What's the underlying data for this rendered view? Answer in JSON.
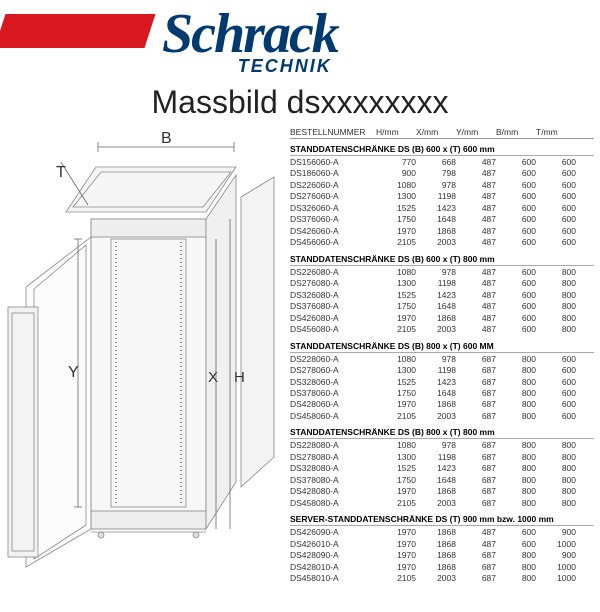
{
  "logo": {
    "main": "Schrack",
    "sub": "TECHNIK"
  },
  "title": "Massbild dsxxxxxxxx",
  "diagram_labels": {
    "B": "B",
    "T": "T",
    "Y": "Y",
    "X": "X",
    "H": "H"
  },
  "columns": [
    "BESTELLNUMMER",
    "H/mm",
    "X/mm",
    "Y/mm",
    "B/mm",
    "T/mm"
  ],
  "sections": [
    {
      "title": "STANDDATENSCHRÄNKE DS (B) 600 x (T) 600 mm",
      "rows": [
        [
          "DS156060-A",
          "770",
          "668",
          "487",
          "600",
          "600"
        ],
        [
          "DS186060-A",
          "900",
          "798",
          "487",
          "600",
          "600"
        ],
        [
          "DS226060-A",
          "1080",
          "978",
          "487",
          "600",
          "600"
        ],
        [
          "DS276060-A",
          "1300",
          "1198",
          "487",
          "600",
          "600"
        ],
        [
          "DS326060-A",
          "1525",
          "1423",
          "487",
          "600",
          "600"
        ],
        [
          "DS376060-A",
          "1750",
          "1648",
          "487",
          "600",
          "600"
        ],
        [
          "DS426060-A",
          "1970",
          "1868",
          "487",
          "600",
          "600"
        ],
        [
          "DS456060-A",
          "2105",
          "2003",
          "487",
          "600",
          "600"
        ]
      ]
    },
    {
      "title": "STANDDATENSCHRÄNKE DS (B) 600 x (T) 800 mm",
      "rows": [
        [
          "DS226080-A",
          "1080",
          "978",
          "487",
          "600",
          "800"
        ],
        [
          "DS276080-A",
          "1300",
          "1198",
          "487",
          "600",
          "800"
        ],
        [
          "DS326080-A",
          "1525",
          "1423",
          "487",
          "600",
          "800"
        ],
        [
          "DS376080-A",
          "1750",
          "1648",
          "487",
          "600",
          "800"
        ],
        [
          "DS426080-A",
          "1970",
          "1868",
          "487",
          "600",
          "800"
        ],
        [
          "DS456080-A",
          "2105",
          "2003",
          "487",
          "600",
          "800"
        ]
      ]
    },
    {
      "title": "STANDDATENSCHRÄNKE DS (B) 800 x (T) 600 MM",
      "rows": [
        [
          "DS228060-A",
          "1080",
          "978",
          "687",
          "800",
          "600"
        ],
        [
          "DS278060-A",
          "1300",
          "1198",
          "687",
          "800",
          "600"
        ],
        [
          "DS328060-A",
          "1525",
          "1423",
          "687",
          "800",
          "600"
        ],
        [
          "DS378060-A",
          "1750",
          "1648",
          "687",
          "800",
          "600"
        ],
        [
          "DS428060-A",
          "1970",
          "1868",
          "687",
          "800",
          "600"
        ],
        [
          "DS458060-A",
          "2105",
          "2003",
          "687",
          "800",
          "600"
        ]
      ]
    },
    {
      "title": "STANDDATENSCHRÄNKE DS (B) 800 x (T) 800 mm",
      "rows": [
        [
          "DS228080-A",
          "1080",
          "978",
          "687",
          "800",
          "800"
        ],
        [
          "DS278080-A",
          "1300",
          "1198",
          "687",
          "800",
          "800"
        ],
        [
          "DS328080-A",
          "1525",
          "1423",
          "687",
          "800",
          "800"
        ],
        [
          "DS378080-A",
          "1750",
          "1648",
          "687",
          "800",
          "800"
        ],
        [
          "DS428080-A",
          "1970",
          "1868",
          "687",
          "800",
          "800"
        ],
        [
          "DS458080-A",
          "2105",
          "2003",
          "687",
          "800",
          "800"
        ]
      ]
    },
    {
      "title": "SERVER-STANDDATENSCHRÄNKE DS (T) 900 mm bzw. 1000 mm",
      "rows": [
        [
          "DS426090-A",
          "1970",
          "1868",
          "487",
          "600",
          "900"
        ],
        [
          "DS426010-A",
          "1970",
          "1868",
          "487",
          "600",
          "1000"
        ],
        [
          "DS428090-A",
          "1970",
          "1868",
          "687",
          "800",
          "900"
        ],
        [
          "DS428010-A",
          "1970",
          "1868",
          "687",
          "800",
          "1000"
        ],
        [
          "DS458010-A",
          "2105",
          "2003",
          "687",
          "800",
          "1000"
        ]
      ]
    }
  ]
}
